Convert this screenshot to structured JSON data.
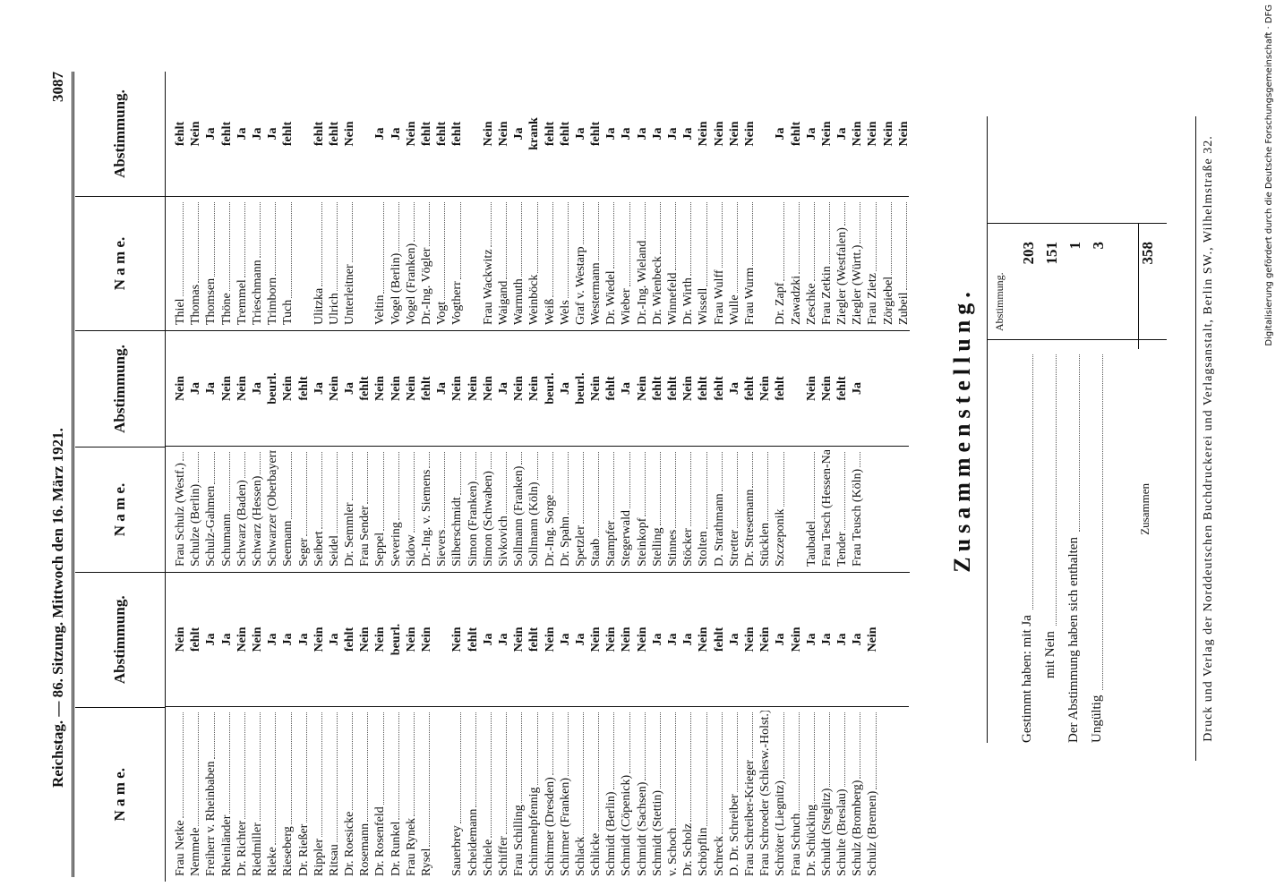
{
  "header": {
    "left": "Reichstag. — 86. Sitzung. Mittwoch den 16. März 1921.",
    "page": "3087"
  },
  "columns": [
    {
      "name_header": "N a m e.",
      "vote_header": "Abstimmung.",
      "groups": [
        [
          [
            "Frau Netke",
            "Nein"
          ],
          [
            "Nemmele",
            "fehlt"
          ],
          [
            "Freiherr v. Rheinbaben",
            "Ja"
          ],
          [
            "Rheinländer",
            "Ja"
          ],
          [
            "Dr. Richter",
            "Nein"
          ],
          [
            "Riedmiller",
            "Nein"
          ],
          [
            "Rieke",
            "Ja"
          ],
          [
            "Rieseberg",
            "Ja"
          ],
          [
            "Dr. Rießer",
            "Ja"
          ],
          [
            "Rippler",
            "Nein"
          ],
          [
            "Ritsau",
            "Ja"
          ],
          [
            "Dr. Roesicke",
            "fehlt"
          ],
          [
            "Rosemann",
            "Nein"
          ],
          [
            "Dr. Rosenfeld",
            "Nein"
          ],
          [
            "Dr. Runkel",
            "beurl."
          ],
          [
            "Frau Rynek",
            "Nein"
          ],
          [
            "Rysel",
            "Nein"
          ]
        ],
        [
          [
            "Sauerbrey",
            "Nein"
          ],
          [
            "Scheidemann",
            "fehlt"
          ],
          [
            "Schiele",
            "Ja"
          ],
          [
            "Schiffer",
            "Ja"
          ],
          [
            "Frau Schilling",
            "Nein"
          ],
          [
            "Schimmelpfennig",
            "fehlt"
          ],
          [
            "Schirmer (Dresden)",
            "Nein"
          ],
          [
            "Schirmer (Franken)",
            "Ja"
          ],
          [
            "Schlack",
            "Ja"
          ],
          [
            "Schlicke",
            "Nein"
          ],
          [
            "Schmidt (Berlin)",
            "Nein"
          ],
          [
            "Schmidt (Cöpenick)",
            "Nein"
          ],
          [
            "Schmidt (Sachsen)",
            "Nein"
          ],
          [
            "Schmidt (Stettin)",
            "Ja"
          ],
          [
            "v. Schoch",
            "Ja"
          ],
          [
            "Dr. Scholz",
            "Ja"
          ],
          [
            "Schöpflin",
            "Nein"
          ],
          [
            "Schreck",
            "fehlt"
          ],
          [
            "D. Dr. Schreiber",
            "Ja"
          ],
          [
            "Frau Schreiber-Krieger",
            "Nein"
          ],
          [
            "Frau Schroeder (Schlesw.-Holst.)",
            "Nein"
          ],
          [
            "Schröter (Liegnitz)",
            "Ja"
          ],
          [
            "Frau Schuch",
            "Nein"
          ],
          [
            "Dr. Schücking",
            "Ja"
          ],
          [
            "Schuldt (Steglitz)",
            "Ja"
          ],
          [
            "Schulte (Breslau)",
            "Ja"
          ],
          [
            "Schulz (Bromberg)",
            "Ja"
          ],
          [
            "Schulz (Bremen)",
            "Nein"
          ]
        ]
      ]
    },
    {
      "name_header": "N a m e.",
      "vote_header": "Abstimmung.",
      "groups": [
        [
          [
            "Frau Schulz (Westf.)",
            "Nein"
          ],
          [
            "Schulze (Berlin)",
            "Ja"
          ],
          [
            "Schulz-Gahmen",
            "Ja"
          ],
          [
            "Schumann",
            "Nein"
          ],
          [
            "Schwarz (Baden)",
            "Nein"
          ],
          [
            "Schwarz (Hessen)",
            "Ja"
          ],
          [
            "Schwarzer (Oberbayern)",
            "beurl."
          ],
          [
            "Seemann",
            "Nein"
          ],
          [
            "Seger",
            "fehlt"
          ],
          [
            "Seibert",
            "Ja"
          ],
          [
            "Seidel",
            "Nein"
          ],
          [
            "Dr. Semmler",
            "Ja"
          ],
          [
            "Frau Sender",
            "fehlt"
          ],
          [
            "Seppel",
            "Nein"
          ],
          [
            "Severing",
            "Nein"
          ],
          [
            "Sidow",
            "Nein"
          ],
          [
            "Dr.-Ing. v. Siemens",
            "fehlt"
          ],
          [
            "Sievers",
            "Ja"
          ],
          [
            "Silberschmidt",
            "Nein"
          ],
          [
            "Simon (Franken)",
            "Nein"
          ],
          [
            "Simon (Schwaben)",
            "Nein"
          ],
          [
            "Sivkovich",
            "Ja"
          ],
          [
            "Sollmann (Franken)",
            "Nein"
          ],
          [
            "Sollmann (Köln)",
            "Nein"
          ],
          [
            "Dr.-Ing. Sorge",
            "beurl."
          ],
          [
            "Dr. Spahn",
            "Ja"
          ],
          [
            "Spetzler",
            "beurl."
          ],
          [
            "Staab",
            "Nein"
          ],
          [
            "Stampfer",
            "fehlt"
          ],
          [
            "Stegerwald",
            "Ja"
          ],
          [
            "Steinkopf",
            "Nein"
          ],
          [
            "Stelling",
            "fehlt"
          ],
          [
            "Stinnes",
            "fehlt"
          ],
          [
            "Stöcker",
            "Nein"
          ],
          [
            "Stolten",
            "fehlt"
          ],
          [
            "D. Strathmann",
            "fehlt"
          ],
          [
            "Stretter",
            "Ja"
          ],
          [
            "Dr. Stresemann",
            "fehlt"
          ],
          [
            "Stücklen",
            "Nein"
          ],
          [
            "Szczeponik",
            "fehlt"
          ]
        ],
        [
          [
            "Taubadel",
            "Nein"
          ],
          [
            "Frau Tesch (Hessen-Nassau)",
            "Nein"
          ],
          [
            "Tender",
            "fehlt"
          ],
          [
            "Frau Teusch (Köln)",
            "Ja"
          ]
        ]
      ]
    },
    {
      "name_header": "N a m e.",
      "vote_header": "Abstimmung.",
      "groups": [
        [
          [
            "Thiel",
            "fehlt"
          ],
          [
            "Thomas",
            "Nein"
          ],
          [
            "Thomsen",
            "Ja"
          ],
          [
            "Thöne",
            "fehlt"
          ],
          [
            "Tremmel",
            "Ja"
          ],
          [
            "Trieschmann",
            "Ja"
          ],
          [
            "Trimborn",
            "Ja"
          ],
          [
            "Tuch",
            "fehlt"
          ]
        ],
        [
          [
            "Ulitzka",
            "fehlt"
          ],
          [
            "Ulrich",
            "fehlt"
          ],
          [
            "Unterleitner",
            "Nein"
          ]
        ],
        [
          [
            "Veltin",
            "Ja"
          ],
          [
            "Vogel (Berlin)",
            "Ja"
          ],
          [
            "Vogel (Franken)",
            "Nein"
          ],
          [
            "Dr.-Ing. Vögler",
            "fehlt"
          ],
          [
            "Vogt",
            "fehlt"
          ],
          [
            "Vogtherr",
            "fehlt"
          ]
        ],
        [
          [
            "Frau Wackwitz",
            "Nein"
          ],
          [
            "Waigand",
            "Nein"
          ],
          [
            "Warmuth",
            "Ja"
          ],
          [
            "Weinböck",
            "krank"
          ],
          [
            "Weiß",
            "fehlt"
          ],
          [
            "Wels",
            "fehlt"
          ],
          [
            "Graf v. Westarp",
            "Ja"
          ],
          [
            "Westermann",
            "fehlt"
          ],
          [
            "Dr. Wiedel",
            "Ja"
          ],
          [
            "Wieber",
            "Ja"
          ],
          [
            "Dr.-Ing. Wieland",
            "Ja"
          ],
          [
            "Dr. Wienbeck",
            "Ja"
          ],
          [
            "Winnefeld",
            "Ja"
          ],
          [
            "Dr. Wirth",
            "Ja"
          ],
          [
            "Wissell",
            "Nein"
          ],
          [
            "Frau Wulff",
            "Nein"
          ],
          [
            "Wulle",
            "Nein"
          ],
          [
            "Frau Wurm",
            "Nein"
          ]
        ],
        [
          [
            "Dr. Zapf",
            "Ja"
          ],
          [
            "Zawadzki",
            "fehlt"
          ],
          [
            "Zeschke",
            "Ja"
          ],
          [
            "Frau Zetkin",
            "Nein"
          ],
          [
            "Ziegler (Westfalen)",
            "Ja"
          ],
          [
            "Ziegler (Württ.)",
            "Nein"
          ],
          [
            "Frau Zietz",
            "Nein"
          ],
          [
            "Zörgiebel",
            "Nein"
          ],
          [
            "Zubeil",
            "Nein"
          ]
        ]
      ]
    }
  ],
  "summary": {
    "title": "Zusammenstellung.",
    "column_header": "Abstimmung.",
    "rows": [
      [
        "Gestimmt haben: mit Ja",
        "203"
      ],
      [
        "mit Nein",
        "151"
      ],
      [
        "Der Abstimmung haben sich enthalten",
        "1"
      ],
      [
        "Ungültig",
        "3"
      ]
    ],
    "total": [
      "Zusammen",
      "358"
    ]
  },
  "footer": "Druck und Verlag der Norddeutschen Buchdruckerei und Verlagsanstalt, Berlin SW., Wilhelmstraße 32.",
  "credit": "Digitalisierung gefördert durch die Deutsche Forschungsgemeinschaft · DFG"
}
